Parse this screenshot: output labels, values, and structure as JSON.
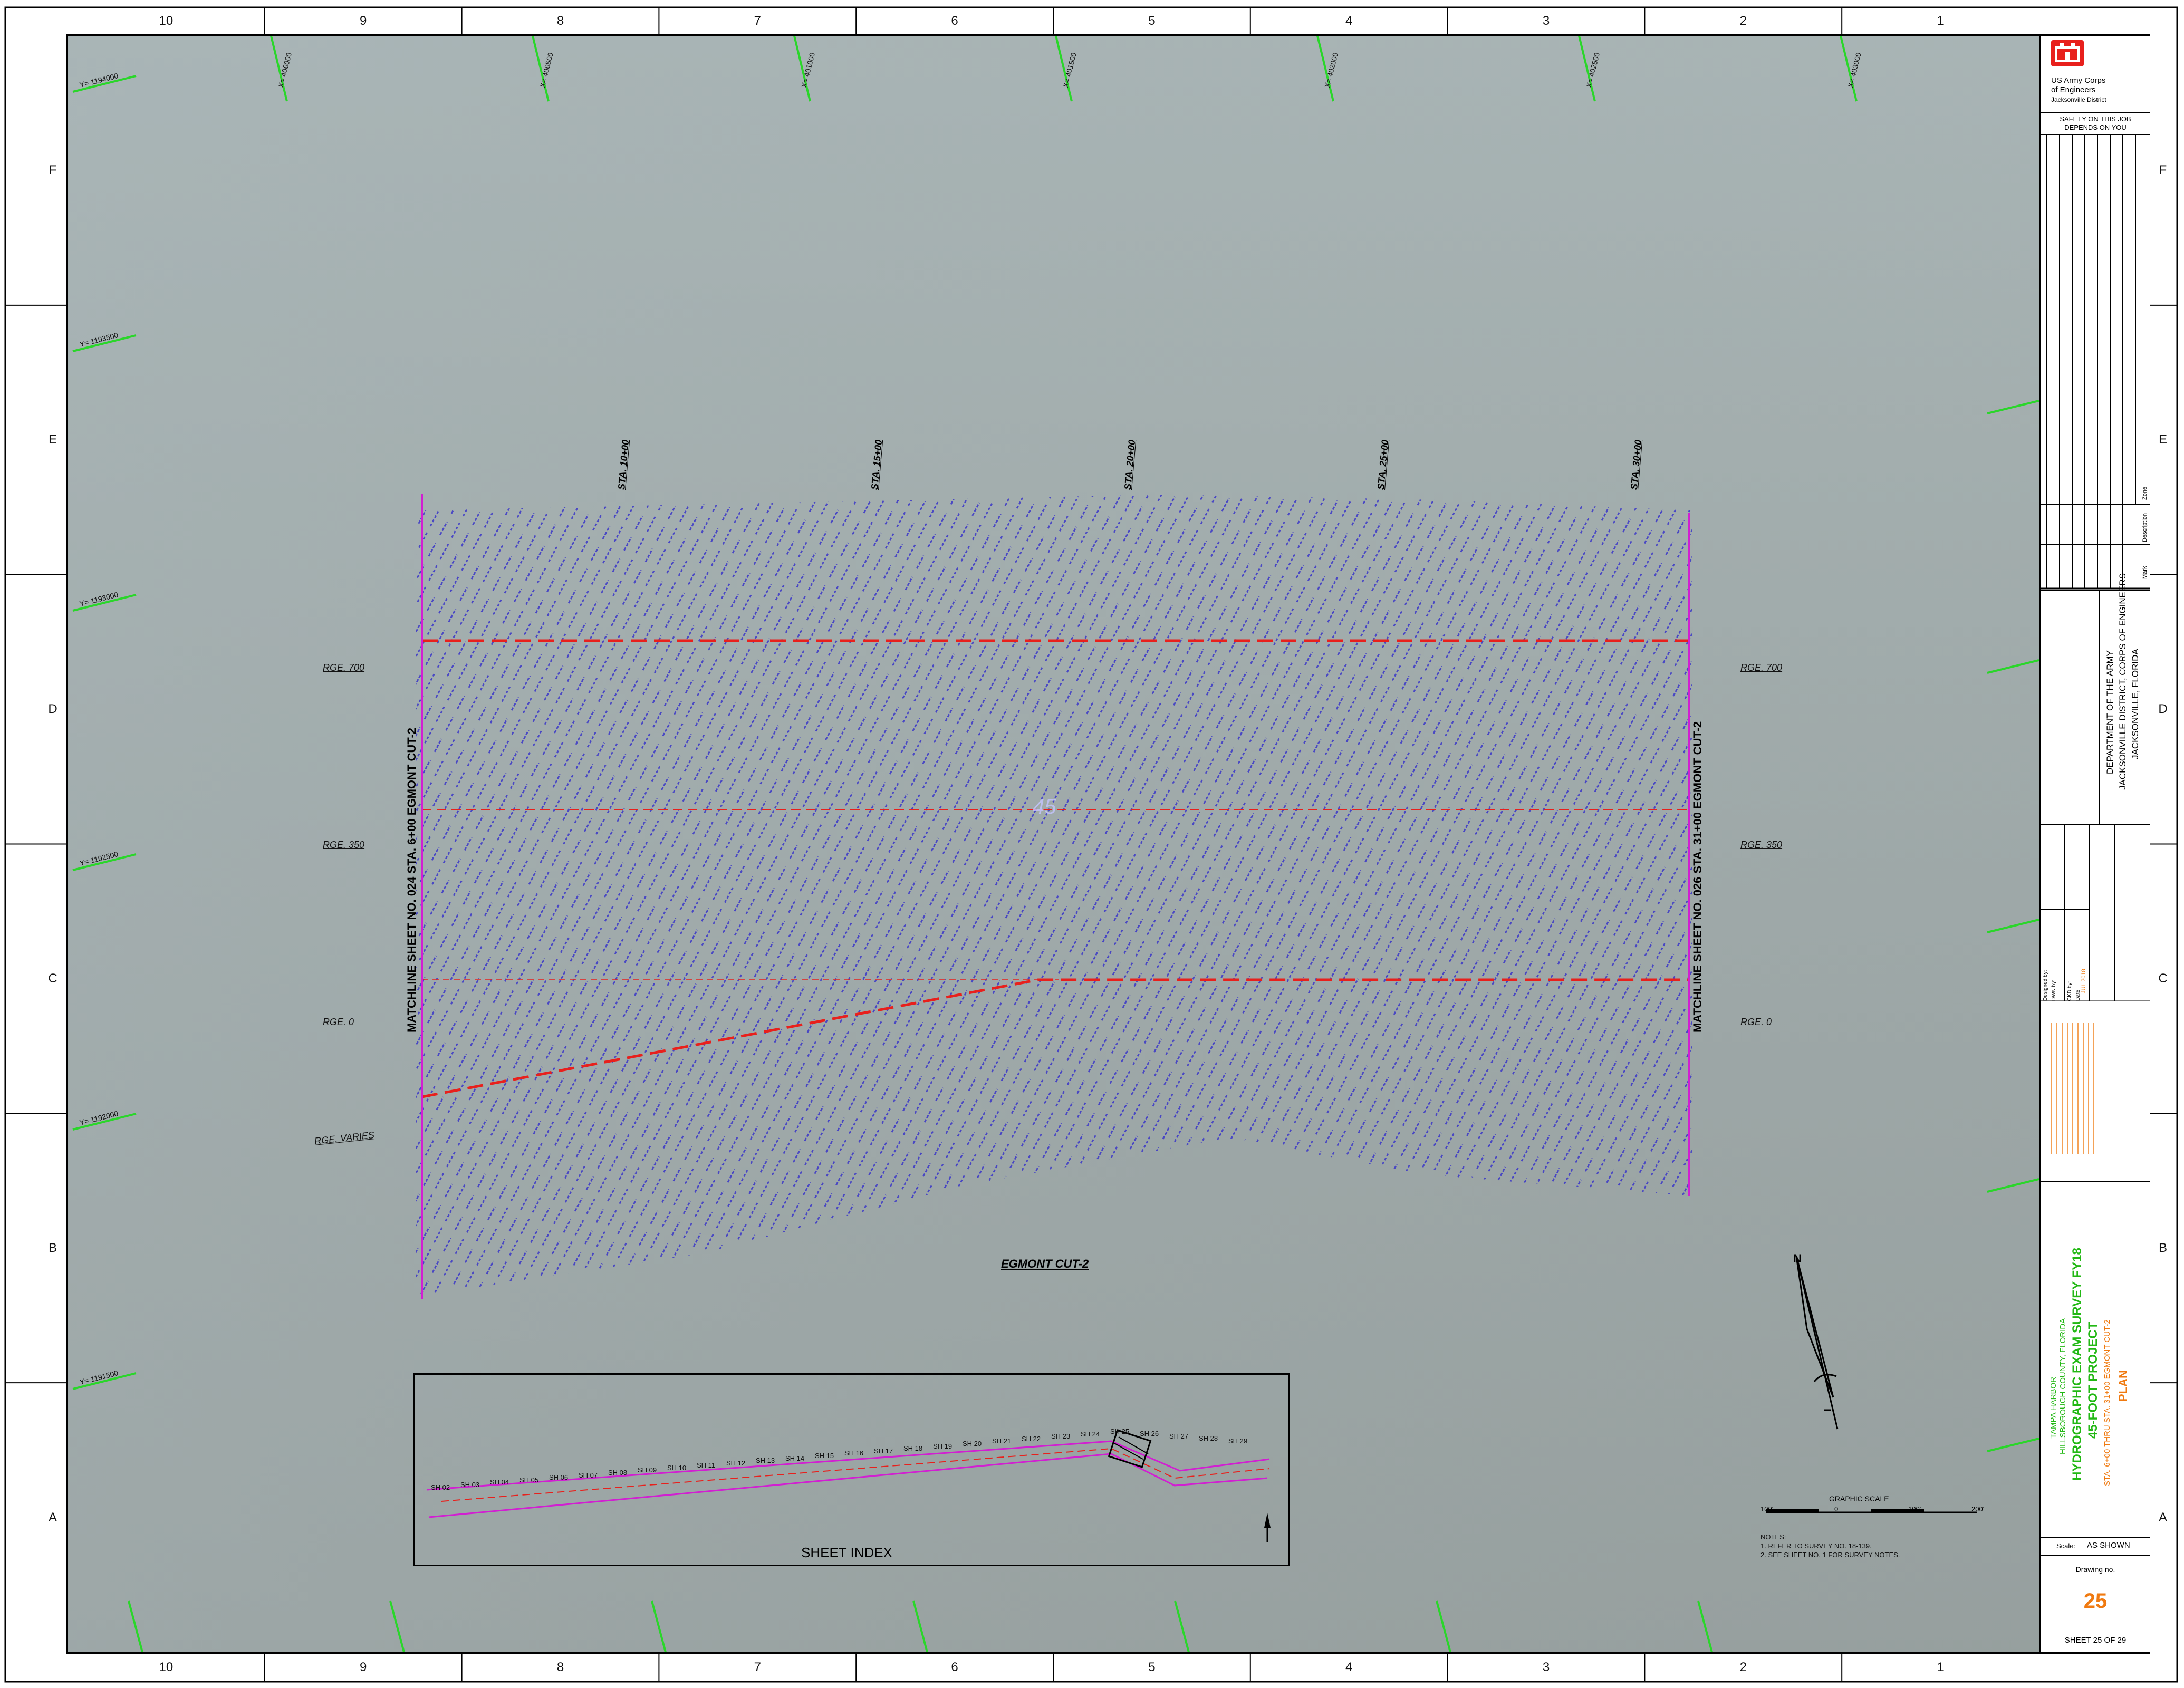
{
  "grid": {
    "columns": [
      "10",
      "9",
      "8",
      "7",
      "6",
      "5",
      "4",
      "3",
      "2",
      "1"
    ],
    "rows": [
      "F",
      "E",
      "D",
      "C",
      "B",
      "A"
    ]
  },
  "coords": {
    "y_labels": [
      "Y= 1194000",
      "Y= 1193500",
      "Y= 1193000",
      "Y= 1192500",
      "Y= 1192000",
      "Y= 1191500"
    ],
    "x_labels": [
      "X= 400000",
      "X= 400500",
      "X= 401000",
      "X= 401500",
      "X= 402000",
      "X= 402500",
      "X= 403000"
    ]
  },
  "survey": {
    "stations": [
      "STA. 10+00",
      "STA. 15+00",
      "STA. 20+00",
      "STA. 25+00",
      "STA. 30+00"
    ],
    "ranges": [
      "RGE. 700",
      "RGE. 350",
      "RGE. 0",
      "RGE. VARIES"
    ],
    "ranges_right": [
      "RGE. 700",
      "RGE. 350",
      "RGE. 0"
    ],
    "matchline_left": "MATCHLINE SHEET NO. 024 STA. 6+00 EGMONT CUT-2",
    "matchline_right": "MATCHLINE SHEET NO. 026 STA. 31+00 EGMONT CUT-2",
    "channel_label": "EGMONT CUT-2",
    "center_mark": "45"
  },
  "sheet_index": {
    "title": "SHEET INDEX",
    "sheets": [
      "SH 02",
      "SH 03",
      "SH 04",
      "SH 05",
      "SH 06",
      "SH 07",
      "SH 08",
      "SH 09",
      "SH 10",
      "SH 11",
      "SH 12",
      "SH 13",
      "SH 14",
      "SH 15",
      "SH 16",
      "SH 17",
      "SH 18",
      "SH 19",
      "SH 20",
      "SH 21",
      "SH 22",
      "SH 23",
      "SH 24",
      "SH 25",
      "SH 26",
      "SH 27",
      "SH 28",
      "SH 29"
    ],
    "current": "SH 25"
  },
  "north_arrow": {
    "label": "N"
  },
  "graphic_scale": {
    "title": "GRAPHIC SCALE",
    "ticks": [
      "100'",
      "0",
      "100'",
      "200'"
    ]
  },
  "notes": {
    "title": "NOTES:",
    "items": [
      "1. REFER TO SURVEY NO. 18-139.",
      "2. SEE SHEET NO. 1 FOR SURVEY NOTES."
    ]
  },
  "title_block": {
    "org_line1": "US Army Corps",
    "org_line2": "of Engineers",
    "org_line3": "Jacksonville District",
    "safety_line1": "SAFETY ON THIS JOB",
    "safety_line2": "DEPENDS ON YOU",
    "rev_header_zone": "Zone",
    "rev_header_mark": "Mark",
    "rev_header_desc": "Description",
    "dept_line1": "DEPARTMENT OF THE ARMY",
    "dept_line2": "JACKSONVILLE DISTRICT, CORPS OF ENGINEERS",
    "dept_line3": "JACKSONVILLE, FLORIDA",
    "designed_by": "Designed by:",
    "dwn_by": "DWN by:",
    "chk_by": "CKD by:",
    "date_lbl": "Date:",
    "date_val": "JUL 2018",
    "title_line1": "TAMPA HARBOR",
    "title_line2": "HILLSBOROUGH COUNTY, FLORIDA",
    "title_line3": "HYDROGRAPHIC EXAM SURVEY FY18",
    "title_line4": "45-FOOT PROJECT",
    "title_line5": "STA. 6+00 THRU STA. 31+00 EGMONT CUT-2",
    "title_line6": "PLAN",
    "scale_lbl": "Scale:",
    "scale_val": "AS SHOWN",
    "drawing_lbl": "Drawing no.",
    "drawing_no": "25",
    "sheet_lbl": "SHEET",
    "sheet_no": "25",
    "of_lbl": "OF",
    "sheet_total": "29"
  },
  "colors": {
    "water": "#a0aaaa",
    "soundings": "#3a36c8",
    "matchline": "#d21ed2",
    "channel_edge": "#e8201c",
    "grid_tick": "#2ad62a",
    "title_green": "#22b814",
    "title_orange": "#f07a10"
  }
}
